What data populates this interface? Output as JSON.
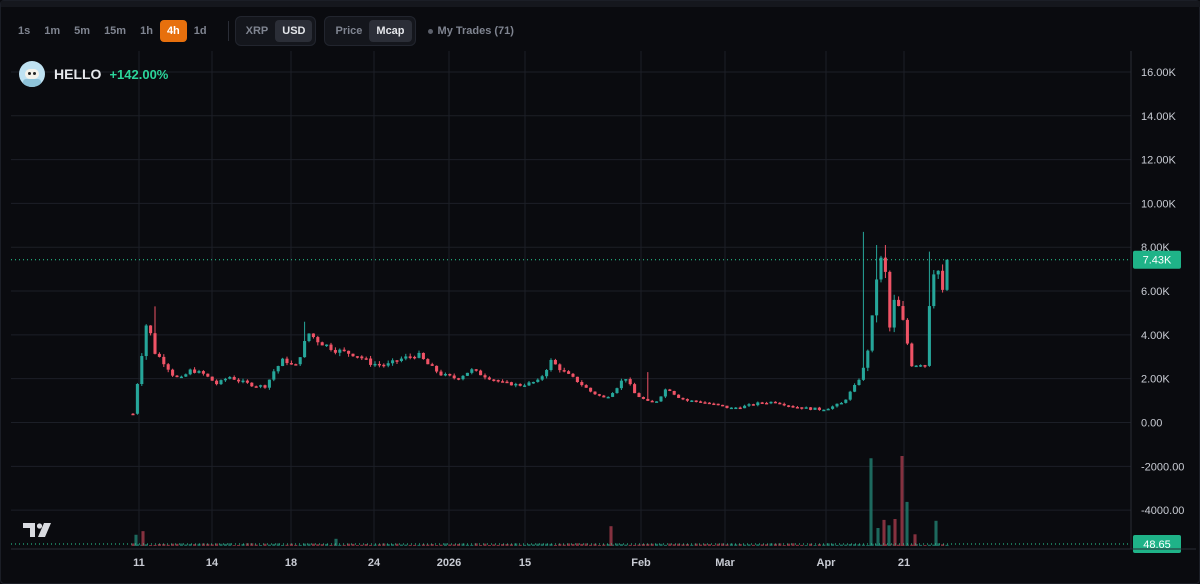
{
  "toolbar": {
    "intervals": [
      "1s",
      "1m",
      "5m",
      "15m",
      "1h",
      "4h",
      "1d"
    ],
    "active_interval": "4h",
    "currencies": [
      "XRP",
      "USD"
    ],
    "active_currency": "USD",
    "modes": [
      "Price",
      "Mcap"
    ],
    "active_mode": "Mcap",
    "my_trades_label": "My Trades (71)"
  },
  "legend": {
    "token": "HELLO",
    "change": "+142.00%"
  },
  "colors": {
    "up": "#26a69a",
    "down": "#ef5366",
    "accent": "#e7700d",
    "label_green": "#2bd49a",
    "background": "#0a0b0f",
    "grid": "#1c1f27"
  },
  "chart_data": {
    "type": "candlestick",
    "title": "HELLO",
    "y_axis": {
      "ylim": [
        -5500,
        16500
      ],
      "tick_values": [
        16000,
        14000,
        12000,
        10000,
        8000,
        6000,
        4000,
        2000,
        0,
        -2000,
        -4000
      ],
      "tick_labels": [
        "16.00K",
        "14.00K",
        "12.00K",
        "10.00K",
        "8.00K",
        "6.00K",
        "4.00K",
        "2.00K",
        "0.00",
        "-2000.00",
        "-4000.00"
      ]
    },
    "x_axis": {
      "range": [
        0,
        100
      ],
      "tick_positions": [
        6.8,
        14.1,
        22.0,
        30.3,
        37.8,
        45.4,
        57.0,
        65.4,
        75.5,
        83.3
      ],
      "tick_labels": [
        "11",
        "14",
        "18",
        "24",
        "2026",
        "15",
        "Feb",
        "Mar",
        "Apr",
        "21"
      ]
    },
    "last_price": {
      "value": 7430,
      "label": "7.43K"
    },
    "last_volume": {
      "value": 48.65,
      "label": "48.65"
    },
    "price_path": [
      [
        6.2,
        400
      ],
      [
        6.8,
        2300
      ],
      [
        7.6,
        4700
      ],
      [
        8.4,
        3200
      ],
      [
        9.4,
        2700
      ],
      [
        10.3,
        2100
      ],
      [
        11.0,
        2000
      ],
      [
        12.0,
        2400
      ],
      [
        13.3,
        2200
      ],
      [
        14.6,
        1750
      ],
      [
        15.8,
        2100
      ],
      [
        16.8,
        1900
      ],
      [
        18.2,
        1700
      ],
      [
        19.5,
        1650
      ],
      [
        20.2,
        2300
      ],
      [
        21.3,
        2900
      ],
      [
        22.4,
        2500
      ],
      [
        23.2,
        3400
      ],
      [
        23.7,
        4100
      ],
      [
        24.8,
        3700
      ],
      [
        26.5,
        3300
      ],
      [
        28.5,
        3100
      ],
      [
        30.0,
        2700
      ],
      [
        31.5,
        2600
      ],
      [
        33.0,
        2900
      ],
      [
        34.7,
        3100
      ],
      [
        35.8,
        2600
      ],
      [
        37.0,
        2200
      ],
      [
        38.6,
        2000
      ],
      [
        40.0,
        2400
      ],
      [
        41.5,
        2100
      ],
      [
        43.2,
        1800
      ],
      [
        45.0,
        1700
      ],
      [
        46.8,
        1900
      ],
      [
        48.0,
        2800
      ],
      [
        49.3,
        2300
      ],
      [
        50.6,
        1900
      ],
      [
        52.0,
        1400
      ],
      [
        53.4,
        1100
      ],
      [
        54.4,
        1500
      ],
      [
        55.4,
        2100
      ],
      [
        56.4,
        1300
      ],
      [
        57.8,
        900
      ],
      [
        58.6,
        1000
      ],
      [
        59.6,
        1600
      ],
      [
        60.6,
        1200
      ],
      [
        61.6,
        1000
      ],
      [
        63.0,
        950
      ],
      [
        64.5,
        800
      ],
      [
        66.0,
        650
      ],
      [
        67.5,
        750
      ],
      [
        69.0,
        900
      ],
      [
        70.5,
        950
      ],
      [
        72.0,
        750
      ],
      [
        73.5,
        650
      ],
      [
        75.0,
        600
      ],
      [
        76.0,
        700
      ],
      [
        77.2,
        900
      ],
      [
        77.8,
        1300
      ],
      [
        78.6,
        1800
      ],
      [
        79.4,
        2600
      ],
      [
        80.0,
        4200
      ],
      [
        80.6,
        6800
      ],
      [
        81.3,
        7800
      ],
      [
        81.8,
        4100
      ],
      [
        82.4,
        5700
      ],
      [
        83.1,
        4800
      ],
      [
        83.6,
        3700
      ],
      [
        84.1,
        2600
      ],
      [
        84.9,
        2700
      ],
      [
        85.5,
        2600
      ],
      [
        86.0,
        6800
      ],
      [
        86.6,
        7200
      ],
      [
        87.2,
        5800
      ],
      [
        87.8,
        7430
      ]
    ],
    "spikes": [
      [
        79.3,
        8700
      ],
      [
        80.7,
        8100
      ],
      [
        81.5,
        8100
      ],
      [
        86.0,
        7800
      ],
      [
        8.2,
        5300
      ],
      [
        23.4,
        4600
      ],
      [
        57.7,
        2300
      ]
    ],
    "volume_spikes": [
      [
        80.0,
        1950
      ],
      [
        83.1,
        2000
      ],
      [
        80.7,
        400
      ],
      [
        81.3,
        580
      ],
      [
        81.8,
        460
      ],
      [
        82.4,
        600
      ],
      [
        83.6,
        980
      ],
      [
        84.4,
        260
      ],
      [
        86.5,
        560
      ],
      [
        54.0,
        440
      ],
      [
        26.5,
        160
      ],
      [
        7.2,
        330
      ],
      [
        6.5,
        250
      ]
    ]
  }
}
